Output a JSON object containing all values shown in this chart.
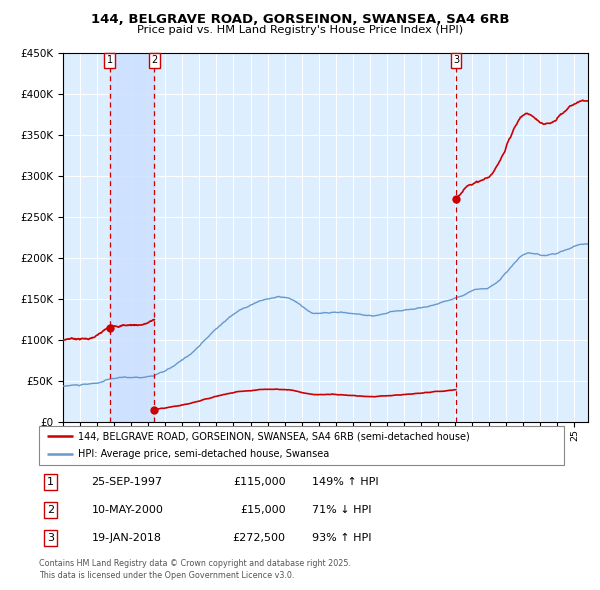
{
  "title": "144, BELGRAVE ROAD, GORSEINON, SWANSEA, SA4 6RB",
  "subtitle": "Price paid vs. HM Land Registry's House Price Index (HPI)",
  "legend_line1": "144, BELGRAVE ROAD, GORSEINON, SWANSEA, SA4 6RB (semi-detached house)",
  "legend_line2": "HPI: Average price, semi-detached house, Swansea",
  "footer1": "Contains HM Land Registry data © Crown copyright and database right 2025.",
  "footer2": "This data is licensed under the Open Government Licence v3.0.",
  "table_dates": [
    "25-SEP-1997",
    "10-MAY-2000",
    "19-JAN-2018"
  ],
  "table_prices": [
    "£115,000",
    "£15,000",
    "£272,500"
  ],
  "table_hpi": [
    "149% ↑ HPI",
    "71% ↓ HPI",
    "93% ↑ HPI"
  ],
  "color_red": "#cc0000",
  "color_blue": "#6699cc",
  "color_bg": "#ddeeff",
  "color_highlight": "#cce0ff",
  "ylim": [
    0,
    450000
  ],
  "yticks": [
    0,
    50000,
    100000,
    150000,
    200000,
    250000,
    300000,
    350000,
    400000,
    450000
  ],
  "hpi_anchors": [
    [
      1995.0,
      43000
    ],
    [
      1996.0,
      44500
    ],
    [
      1997.0,
      46000
    ],
    [
      1997.75,
      50000
    ],
    [
      1999.0,
      52000
    ],
    [
      2000.5,
      56000
    ],
    [
      2002.0,
      72000
    ],
    [
      2003.5,
      100000
    ],
    [
      2004.5,
      120000
    ],
    [
      2005.5,
      135000
    ],
    [
      2007.0,
      148000
    ],
    [
      2008.5,
      145000
    ],
    [
      2009.5,
      130000
    ],
    [
      2010.5,
      128000
    ],
    [
      2012.0,
      127000
    ],
    [
      2013.0,
      125000
    ],
    [
      2014.0,
      128000
    ],
    [
      2015.0,
      132000
    ],
    [
      2016.0,
      135000
    ],
    [
      2017.0,
      140000
    ],
    [
      2018.0,
      147000
    ],
    [
      2019.0,
      158000
    ],
    [
      2020.0,
      162000
    ],
    [
      2021.0,
      180000
    ],
    [
      2022.0,
      200000
    ],
    [
      2023.0,
      198000
    ],
    [
      2024.0,
      200000
    ],
    [
      2025.0,
      210000
    ],
    [
      2025.8,
      212000
    ]
  ],
  "t1_year": 1997,
  "t1_month": 9,
  "t1_day": 25,
  "t1_price": 115000,
  "t2_year": 2000,
  "t2_month": 5,
  "t2_day": 10,
  "t2_price": 15000,
  "t3_year": 2018,
  "t3_month": 1,
  "t3_day": 19,
  "t3_price": 272500,
  "xmin": 1995.0,
  "xmax": 2025.8
}
